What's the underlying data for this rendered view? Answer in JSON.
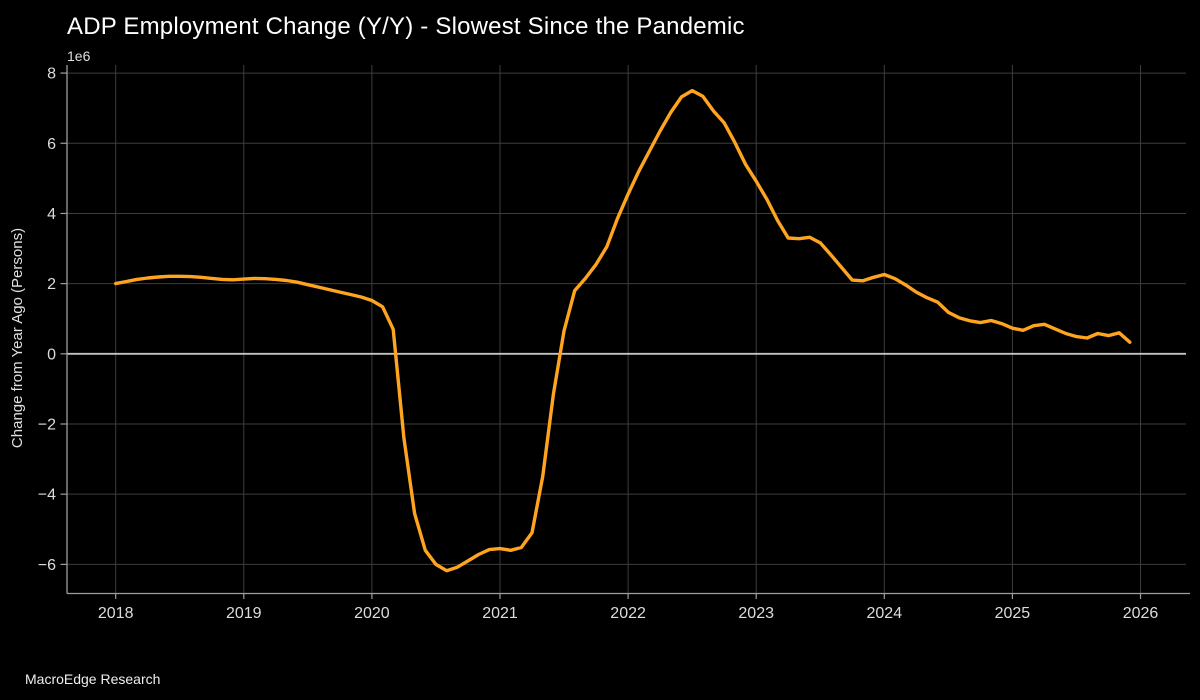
{
  "page": {
    "background": "#000000",
    "footer": "MacroEdge Research"
  },
  "chart_data": {
    "type": "line",
    "title": "ADP Employment Change (Y/Y) - Slowest Since the Pandemic",
    "xlabel": "",
    "ylabel": "Change from Year Ago (Persons)",
    "offset_text": "1e6",
    "unit_note": "values in millions of persons (1e6)",
    "grid": true,
    "legend": "none",
    "zero_line": true,
    "xlim": [
      2017.62,
      2026.355
    ],
    "ylim_e6": [
      -6.83,
      8.23
    ],
    "xticks": [
      2018,
      2019,
      2020,
      2021,
      2022,
      2023,
      2024,
      2025,
      2026
    ],
    "xticklabels": [
      "2018",
      "2019",
      "2020",
      "2021",
      "2022",
      "2023",
      "2024",
      "2025",
      "2026"
    ],
    "yticks_e6": [
      -6,
      -4,
      -2,
      0,
      2,
      4,
      6,
      8
    ],
    "yticklabels": [
      "−6",
      "−4",
      "−2",
      "0",
      "2",
      "4",
      "6",
      "8"
    ],
    "series": [
      {
        "name": "ADP Employment Change (Y/Y)",
        "color": "#FFA41E",
        "start": "2018-01",
        "end": "2025-12",
        "frequency": "monthly",
        "values_e6": [
          2.0,
          2.06,
          2.12,
          2.16,
          2.19,
          2.21,
          2.21,
          2.2,
          2.18,
          2.15,
          2.12,
          2.11,
          2.13,
          2.15,
          2.14,
          2.12,
          2.09,
          2.04,
          1.97,
          1.9,
          1.83,
          1.76,
          1.69,
          1.62,
          1.52,
          1.34,
          0.7,
          -2.4,
          -4.55,
          -5.6,
          -6.0,
          -6.18,
          -6.08,
          -5.9,
          -5.72,
          -5.58,
          -5.55,
          -5.6,
          -5.52,
          -5.1,
          -3.5,
          -1.15,
          0.65,
          1.8,
          2.15,
          2.55,
          3.05,
          3.85,
          4.55,
          5.2,
          5.78,
          6.35,
          6.88,
          7.32,
          7.5,
          7.34,
          6.92,
          6.58,
          6.02,
          5.4,
          4.92,
          4.4,
          3.8,
          3.3,
          3.28,
          3.32,
          3.16,
          2.82,
          2.46,
          2.1,
          2.08,
          2.18,
          2.26,
          2.14,
          1.96,
          1.76,
          1.6,
          1.47,
          1.18,
          1.03,
          0.94,
          0.89,
          0.95,
          0.86,
          0.73,
          0.67,
          0.8,
          0.84,
          0.71,
          0.58,
          0.49,
          0.45,
          0.58,
          0.52,
          0.6,
          0.33
        ]
      }
    ],
    "style": {
      "background": "#000000",
      "grid_color": "#3d3d3d",
      "zero_line_color": "#c4c4c4",
      "spine_color": "#9e9e9e",
      "tick_color": "#9e9e9e",
      "text_color": "#dcdcdc",
      "title_color": "#ffffff",
      "line_color": "#FFA41E"
    }
  }
}
